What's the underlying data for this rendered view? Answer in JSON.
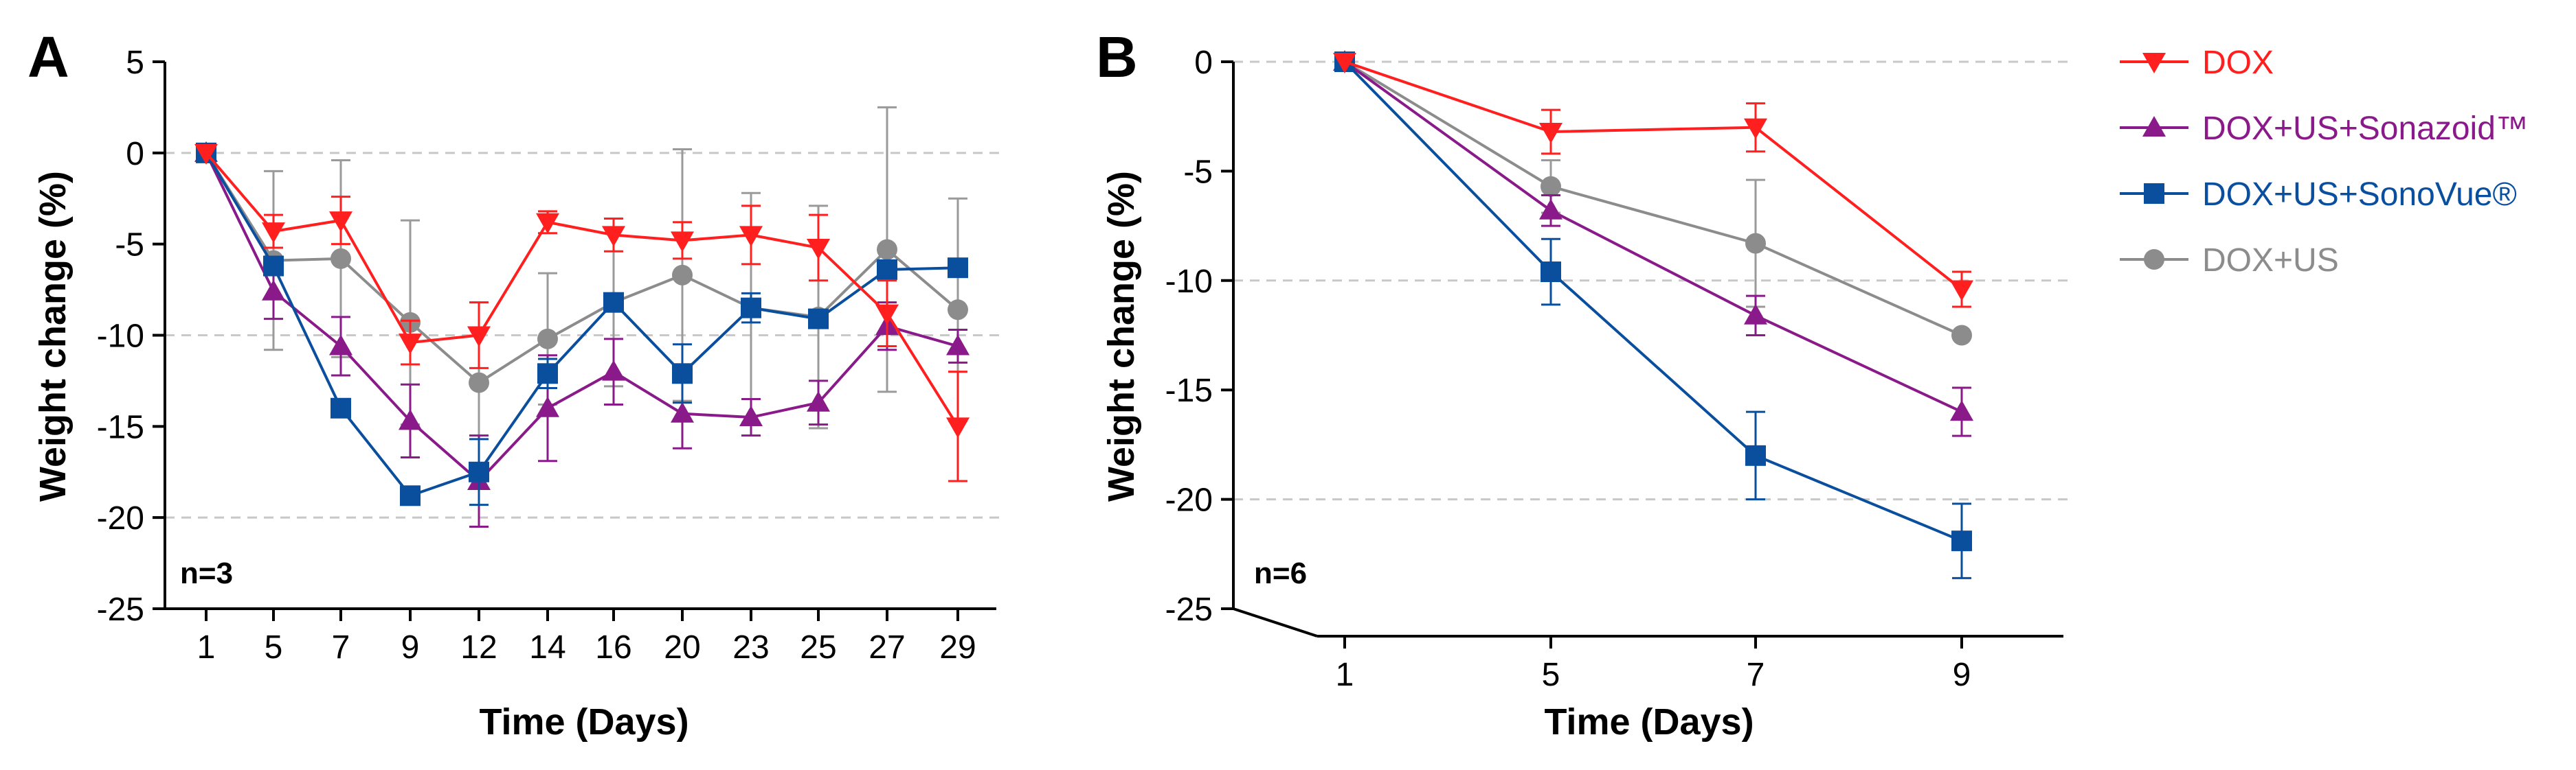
{
  "chart_data": [
    {
      "panel": "A",
      "type": "line",
      "title": "",
      "xlabel": "Time (Days)",
      "ylabel": "Weight change  (%)",
      "annotation": "n=3",
      "categories": [
        "1",
        "5",
        "7",
        "9",
        "12",
        "14",
        "16",
        "20",
        "23",
        "25",
        "27",
        "29"
      ],
      "ylim": [
        -25,
        5
      ],
      "yticks": [
        5,
        0,
        -5,
        -10,
        -15,
        -20,
        -25
      ],
      "gridlines_y": [
        0,
        -10,
        -20
      ],
      "series": [
        {
          "name": "DOX",
          "color": "#ff1f1f",
          "marker": "triangle-down",
          "values": [
            0,
            -4.3,
            -3.7,
            -10.4,
            -10.0,
            -3.8,
            -4.5,
            -4.8,
            -4.5,
            -5.2,
            -8.8,
            -15.0
          ],
          "errors": [
            0,
            0.9,
            1.3,
            1.2,
            1.8,
            0.6,
            0.9,
            1.0,
            1.6,
            1.8,
            1.8,
            3.0
          ]
        },
        {
          "name": "DOX+US+Sonazoid™",
          "color": "#8a1a8a",
          "marker": "triangle-up",
          "values": [
            0,
            -7.6,
            -10.6,
            -14.7,
            -18.0,
            -14.0,
            -12.0,
            -14.3,
            -14.5,
            -13.7,
            -9.5,
            -10.6
          ],
          "errors": [
            0,
            1.5,
            1.6,
            2.0,
            2.5,
            2.9,
            1.8,
            1.9,
            1.0,
            1.2,
            1.3,
            0.9
          ]
        },
        {
          "name": "DOX+US+SonoVue®",
          "color": "#0a4f9e",
          "marker": "square",
          "values": [
            0,
            -6.2,
            -14.0,
            -18.8,
            -17.5,
            -12.1,
            -8.2,
            -12.1,
            -8.5,
            -9.1,
            -6.4,
            -6.3
          ],
          "errors": [
            0,
            0,
            0,
            0,
            1.8,
            0.8,
            0,
            1.6,
            0.8,
            0.4,
            0.3,
            0
          ]
        },
        {
          "name": "DOX+US",
          "color": "#8c8c8c",
          "marker": "circle",
          "values": [
            0,
            -5.9,
            -5.8,
            -9.3,
            -12.6,
            -10.2,
            -8.2,
            -6.7,
            -8.5,
            -9.0,
            -5.3,
            -8.6
          ],
          "errors": [
            0,
            4.9,
            5.4,
            5.6,
            4.4,
            3.6,
            4.6,
            6.9,
            6.3,
            6.1,
            7.8,
            6.1
          ]
        }
      ]
    },
    {
      "panel": "B",
      "type": "line",
      "title": "",
      "xlabel": "Time (Days)",
      "ylabel": "Weight change (%)",
      "annotation": "n=6",
      "categories": [
        "1",
        "5",
        "7",
        "9"
      ],
      "ylim": [
        -25,
        0
      ],
      "yticks": [
        0,
        -5,
        -10,
        -15,
        -20,
        -25
      ],
      "gridlines_y": [
        0,
        -10,
        -20
      ],
      "series": [
        {
          "name": "DOX",
          "color": "#ff1f1f",
          "marker": "triangle-down",
          "values": [
            0,
            -3.2,
            -3.0,
            -10.4
          ],
          "errors": [
            0,
            1.0,
            1.1,
            0.8
          ]
        },
        {
          "name": "DOX+US+Sonazoid™",
          "color": "#8a1a8a",
          "marker": "triangle-up",
          "values": [
            0,
            -6.8,
            -11.6,
            -16.0
          ],
          "errors": [
            0,
            0.7,
            0.9,
            1.1
          ]
        },
        {
          "name": "DOX+US+SonoVue®",
          "color": "#0a4f9e",
          "marker": "square",
          "values": [
            0,
            -9.6,
            -18.0,
            -21.9
          ],
          "errors": [
            0,
            1.5,
            2.0,
            1.7
          ]
        },
        {
          "name": "DOX+US",
          "color": "#8c8c8c",
          "marker": "circle",
          "values": [
            0,
            -5.7,
            -8.3,
            -12.5
          ],
          "errors": [
            0,
            1.2,
            2.9,
            0
          ]
        }
      ]
    }
  ],
  "legend": {
    "placement": "right",
    "items": [
      {
        "label": "DOX",
        "color": "#ff1f1f",
        "marker": "triangle-down"
      },
      {
        "label": "DOX+US+Sonazoid™",
        "color": "#8a1a8a",
        "marker": "triangle-up"
      },
      {
        "label": "DOX+US+SonoVue®",
        "color": "#0a4f9e",
        "marker": "square"
      },
      {
        "label": "DOX+US",
        "color": "#8c8c8c",
        "marker": "circle"
      }
    ]
  }
}
